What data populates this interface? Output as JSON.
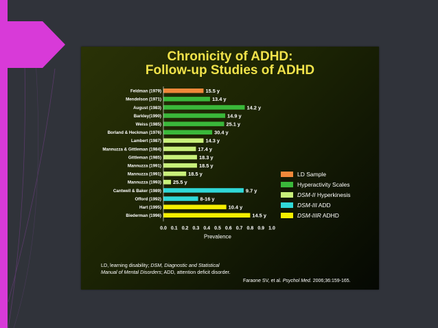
{
  "slide": {
    "title_line1": "Chronicity of ADHD:",
    "title_line2": "Follow-up Studies of ADHD",
    "footnote": {
      "p1": "LD, learning disability; ",
      "p2": "DSM, Diagnostic and Statistical Manual of Mental Disorders",
      "p3": "; ADD, attention deficit disorder."
    },
    "citation": {
      "p1": "Faraone SV, et al. ",
      "p2": "Psychol Med.",
      "p3": " 2006;36:159-165."
    }
  },
  "legend": [
    {
      "prefix": "",
      "label": "LD Sample",
      "color": "#f0883a"
    },
    {
      "prefix": "",
      "label": "Hyperactivity Scales",
      "color": "#3ab83a"
    },
    {
      "prefix": "DSM-II",
      "label": " Hyperkinesis",
      "color": "#c8f07a"
    },
    {
      "prefix": "DSM-III",
      "label": " ADD",
      "color": "#30d8d8"
    },
    {
      "prefix": "DSM-IIIR",
      "label": " ADHD",
      "color": "#f5ef00"
    }
  ],
  "chart_data": {
    "type": "bar",
    "orientation": "horizontal",
    "xlabel": "Prevalence",
    "xlim": [
      0,
      1.0
    ],
    "xticks": [
      "0.0",
      "0.1",
      "0.2",
      "0.3",
      "0.4",
      "0.5",
      "0.6",
      "0.7",
      "0.8",
      "0.9",
      "1.0"
    ],
    "grid": false,
    "legend_position": "right",
    "bars": [
      {
        "category": "Feldman (1979)",
        "value": 0.37,
        "label": "15.5 y",
        "group": 0
      },
      {
        "category": "Mendelson (1971)",
        "value": 0.43,
        "label": "13.4 y",
        "group": 1
      },
      {
        "category": "August (1983)",
        "value": 0.75,
        "label": "14.2 y",
        "group": 1
      },
      {
        "category": "Barkley(1990)",
        "value": 0.57,
        "label": "14.9 y",
        "group": 1
      },
      {
        "category": "Weiss (1985)",
        "value": 0.56,
        "label": "25.1 y",
        "group": 1
      },
      {
        "category": "Borland & Heckman (1976)",
        "value": 0.45,
        "label": "30.4 y",
        "group": 1
      },
      {
        "category": "Lambert (1987)",
        "value": 0.37,
        "label": "14.3 y",
        "group": 2
      },
      {
        "category": "Mannuzza & Gittleman (1984)",
        "value": 0.3,
        "label": "17.4 y",
        "group": 2
      },
      {
        "category": "Gittleman (1985)",
        "value": 0.31,
        "label": "18.3 y",
        "group": 2
      },
      {
        "category": "Mannuzza (1991)",
        "value": 0.31,
        "label": "18.5 y",
        "group": 2
      },
      {
        "category": "Mannuzza (1991)",
        "value": 0.21,
        "label": "18.5 y",
        "group": 2
      },
      {
        "category": "Mannuzza (1993)",
        "value": 0.07,
        "label": "25.5 y",
        "group": 2
      },
      {
        "category": "Cantwell & Baker (1989)",
        "value": 0.74,
        "label": "9.7 y",
        "group": 3
      },
      {
        "category": "Offord (1992)",
        "value": 0.32,
        "label": "8-16 y",
        "group": 3
      },
      {
        "category": "Hart (1995)",
        "value": 0.58,
        "label": "10.4 y",
        "group": 4
      },
      {
        "category": "Biederman (1996)",
        "value": 0.8,
        "label": "14.5 y",
        "group": 4
      }
    ]
  }
}
